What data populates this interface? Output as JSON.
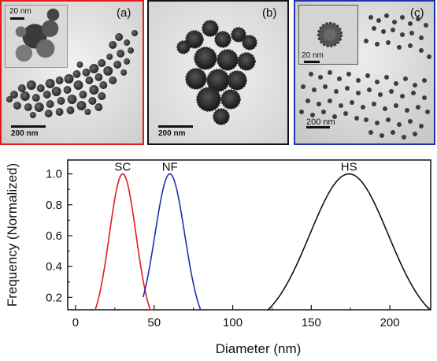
{
  "panels": [
    {
      "label": "(a)",
      "scale_label": "200 nm",
      "inset_scale_label": "20 nm",
      "border_color": "#e11c1c"
    },
    {
      "label": "(b)",
      "scale_label": "200 nm",
      "border_color": "#111111"
    },
    {
      "label": "(c)",
      "scale_label": "200 nm",
      "inset_scale_label": "20 nm",
      "border_color": "#2233aa"
    }
  ],
  "chart_data": {
    "type": "line",
    "xlabel": "Diameter (nm)",
    "ylabel": "Frequency (Normalized)",
    "xlim": [
      -5,
      226
    ],
    "ylim": [
      0.12,
      1.09
    ],
    "xticks": [
      0,
      50,
      100,
      150,
      200
    ],
    "yticks": [
      0.2,
      0.4,
      0.6,
      0.8,
      1.0
    ],
    "xtick_labels": [
      "0",
      "50",
      "100",
      "150",
      "200"
    ],
    "ytick_labels": [
      "0.2",
      "0.4",
      "0.6",
      "0.8",
      "1.0"
    ],
    "grid": false,
    "series": [
      {
        "name": "SC",
        "color": "#e11c1c",
        "peak": 30,
        "sigma": 8.5,
        "x_start": 12,
        "x_end": 49
      },
      {
        "name": "NF",
        "color": "#1f2fb0",
        "peak": 60,
        "sigma": 9.5,
        "x_start": 43,
        "x_end": 81
      },
      {
        "name": "HS",
        "color": "#111111",
        "peak": 174,
        "sigma": 25,
        "x_start": 122,
        "x_end": 226
      }
    ]
  }
}
